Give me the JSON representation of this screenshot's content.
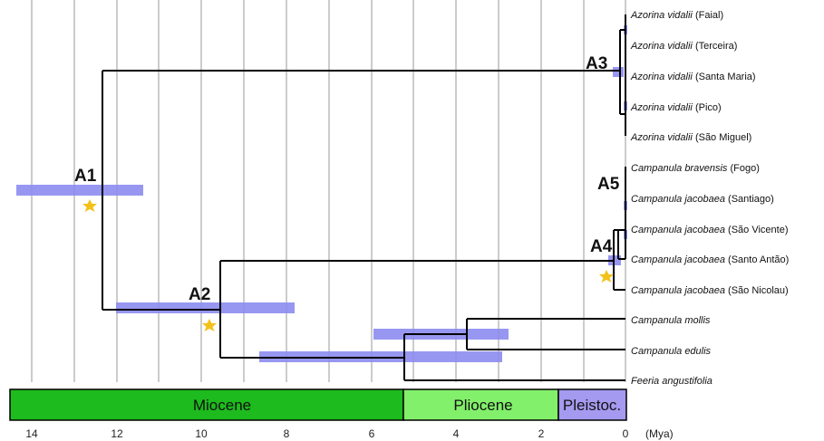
{
  "tips": [
    {
      "genus": "Azorina vidalii",
      "location": "(Faial)"
    },
    {
      "genus": "Azorina vidalii",
      "location": "(Terceira)"
    },
    {
      "genus": "Azorina vidalii",
      "location": "(Santa Maria)"
    },
    {
      "genus": "Azorina vidalii",
      "location": "(Pico)"
    },
    {
      "genus": "Azorina vidalii",
      "location": "(São Miguel)"
    },
    {
      "genus": "Campanula bravensis",
      "location": "(Fogo)"
    },
    {
      "genus": "Campanula jacobaea",
      "location": "(Santiago)"
    },
    {
      "genus": "Campanula jacobaea",
      "location": "(São Vicente)"
    },
    {
      "genus": "Campanula jacobaea",
      "location": "(Santo Antão)"
    },
    {
      "genus": "Campanula jacobaea",
      "location": "(São Nicolau)"
    },
    {
      "genus": "Campanula mollis",
      "location": ""
    },
    {
      "genus": "Campanula edulis",
      "location": ""
    },
    {
      "genus": "Feeria angustifolia",
      "location": ""
    }
  ],
  "node_labels": {
    "a1": "A1",
    "a2": "A2",
    "a3": "A3",
    "a4": "A4",
    "a5": "A5"
  },
  "axis": {
    "ticks": [
      "14",
      "12",
      "10",
      "8",
      "6",
      "4",
      "2",
      "0"
    ],
    "unit": "(Mya)"
  },
  "epochs": [
    {
      "name": "Miocene",
      "color": "#1dbb1d"
    },
    {
      "name": "Pliocene",
      "color": "#82f06a"
    },
    {
      "name": "Pleistoc.",
      "color": "#a49af0"
    }
  ],
  "colors": {
    "hpd_bar": "#8c8cf0",
    "marker_star": "#f3c21a",
    "branch": "#000000",
    "gridline": "#999999"
  }
}
